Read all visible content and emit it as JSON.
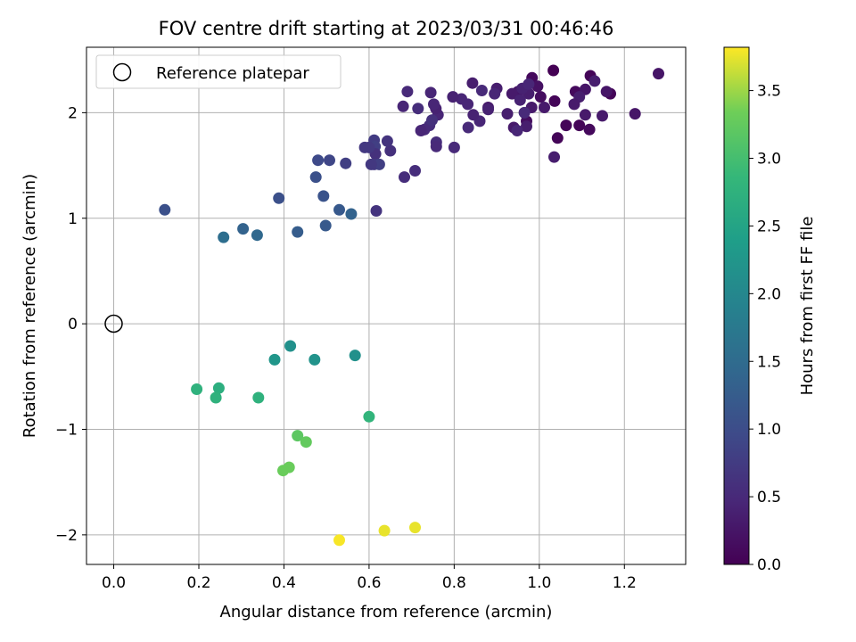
{
  "chart_data": {
    "type": "scatter",
    "title": "FOV centre drift starting at 2023/03/31 00:46:46",
    "xlabel": "Angular distance from reference (arcmin)",
    "ylabel": "Rotation from reference (arcmin)",
    "xlim": [
      -0.064,
      1.344
    ],
    "ylim": [
      -2.28,
      2.62
    ],
    "xticks": [
      0.0,
      0.2,
      0.4,
      0.6,
      0.8,
      1.0,
      1.2
    ],
    "xtick_labels": [
      "0.0",
      "0.2",
      "0.4",
      "0.6",
      "0.8",
      "1.0",
      "1.2"
    ],
    "yticks": [
      -2,
      -1,
      0,
      1,
      2
    ],
    "ytick_labels": [
      "−2",
      "−1",
      "0",
      "1",
      "2"
    ],
    "grid": true,
    "legend": {
      "location": "upper-left",
      "entries": [
        "Reference platepar"
      ]
    },
    "reference_point": {
      "x": 0.0,
      "y": 0.0
    },
    "colorbar": {
      "label": "Hours from first FF file",
      "colormap": "viridis",
      "range": [
        0.0,
        3.82
      ],
      "ticks": [
        0.0,
        0.5,
        1.0,
        1.5,
        2.0,
        2.5,
        3.0,
        3.5
      ],
      "tick_labels": [
        "0.0",
        "0.5",
        "1.0",
        "1.5",
        "2.0",
        "2.5",
        "3.0",
        "3.5"
      ]
    },
    "points": [
      {
        "x": 1.033,
        "y": 2.4,
        "c": 0.0
      },
      {
        "x": 1.12,
        "y": 2.35,
        "c": 0.05
      },
      {
        "x": 1.167,
        "y": 2.18,
        "c": 0.05
      },
      {
        "x": 0.983,
        "y": 2.33,
        "c": 0.1
      },
      {
        "x": 1.085,
        "y": 2.2,
        "c": 0.1
      },
      {
        "x": 1.043,
        "y": 1.76,
        "c": 0.05
      },
      {
        "x": 1.063,
        "y": 1.88,
        "c": 0.05
      },
      {
        "x": 1.094,
        "y": 1.88,
        "c": 0.05
      },
      {
        "x": 1.118,
        "y": 1.84,
        "c": 0.1
      },
      {
        "x": 1.003,
        "y": 2.15,
        "c": 0.15
      },
      {
        "x": 1.036,
        "y": 2.11,
        "c": 0.05
      },
      {
        "x": 0.97,
        "y": 1.92,
        "c": 0.15
      },
      {
        "x": 1.108,
        "y": 2.22,
        "c": 0.25
      },
      {
        "x": 1.158,
        "y": 2.2,
        "c": 0.25
      },
      {
        "x": 1.13,
        "y": 2.3,
        "c": 0.35
      },
      {
        "x": 1.28,
        "y": 2.37,
        "c": 0.25
      },
      {
        "x": 1.225,
        "y": 1.99,
        "c": 0.25
      },
      {
        "x": 1.148,
        "y": 1.97,
        "c": 0.3
      },
      {
        "x": 1.108,
        "y": 1.98,
        "c": 0.3
      },
      {
        "x": 1.094,
        "y": 2.15,
        "c": 0.35
      },
      {
        "x": 1.082,
        "y": 2.08,
        "c": 0.3
      },
      {
        "x": 1.035,
        "y": 1.58,
        "c": 0.35
      },
      {
        "x": 1.012,
        "y": 2.05,
        "c": 0.3
      },
      {
        "x": 0.996,
        "y": 2.25,
        "c": 0.2
      },
      {
        "x": 0.982,
        "y": 2.05,
        "c": 0.3
      },
      {
        "x": 0.975,
        "y": 2.18,
        "c": 0.35
      },
      {
        "x": 0.97,
        "y": 1.87,
        "c": 0.35
      },
      {
        "x": 0.95,
        "y": 2.2,
        "c": 0.25
      },
      {
        "x": 0.94,
        "y": 1.86,
        "c": 0.3
      },
      {
        "x": 0.948,
        "y": 1.83,
        "c": 0.45
      },
      {
        "x": 0.925,
        "y": 1.99,
        "c": 0.35
      },
      {
        "x": 0.936,
        "y": 2.18,
        "c": 0.3
      },
      {
        "x": 0.96,
        "y": 2.23,
        "c": 0.4
      },
      {
        "x": 0.975,
        "y": 2.27,
        "c": 0.45
      },
      {
        "x": 0.955,
        "y": 2.12,
        "c": 0.4
      },
      {
        "x": 0.965,
        "y": 2.0,
        "c": 0.5
      },
      {
        "x": 0.9,
        "y": 2.23,
        "c": 0.35
      },
      {
        "x": 0.895,
        "y": 2.18,
        "c": 0.45
      },
      {
        "x": 0.88,
        "y": 2.05,
        "c": 0.3
      },
      {
        "x": 0.88,
        "y": 2.03,
        "c": 0.4
      },
      {
        "x": 0.865,
        "y": 2.21,
        "c": 0.5
      },
      {
        "x": 0.86,
        "y": 1.92,
        "c": 0.45
      },
      {
        "x": 0.845,
        "y": 1.98,
        "c": 0.4
      },
      {
        "x": 0.843,
        "y": 2.28,
        "c": 0.35
      },
      {
        "x": 0.832,
        "y": 2.08,
        "c": 0.45
      },
      {
        "x": 0.817,
        "y": 2.13,
        "c": 0.45
      },
      {
        "x": 0.833,
        "y": 1.86,
        "c": 0.5
      },
      {
        "x": 0.797,
        "y": 2.15,
        "c": 0.4
      },
      {
        "x": 0.8,
        "y": 1.67,
        "c": 0.5
      },
      {
        "x": 0.762,
        "y": 1.98,
        "c": 0.45
      },
      {
        "x": 0.757,
        "y": 2.04,
        "c": 0.4
      },
      {
        "x": 0.752,
        "y": 2.08,
        "c": 0.45
      },
      {
        "x": 0.745,
        "y": 2.19,
        "c": 0.45
      },
      {
        "x": 0.742,
        "y": 1.88,
        "c": 0.55
      },
      {
        "x": 0.748,
        "y": 1.93,
        "c": 0.6
      },
      {
        "x": 0.73,
        "y": 1.84,
        "c": 0.5
      },
      {
        "x": 0.722,
        "y": 1.83,
        "c": 0.45
      },
      {
        "x": 0.758,
        "y": 1.72,
        "c": 0.55
      },
      {
        "x": 0.758,
        "y": 1.68,
        "c": 0.5
      },
      {
        "x": 0.715,
        "y": 2.04,
        "c": 0.55
      },
      {
        "x": 0.69,
        "y": 2.2,
        "c": 0.5
      },
      {
        "x": 0.68,
        "y": 2.06,
        "c": 0.45
      },
      {
        "x": 0.708,
        "y": 1.45,
        "c": 0.55
      },
      {
        "x": 0.683,
        "y": 1.39,
        "c": 0.55
      },
      {
        "x": 0.65,
        "y": 1.64,
        "c": 0.6
      },
      {
        "x": 0.643,
        "y": 1.73,
        "c": 0.65
      },
      {
        "x": 0.612,
        "y": 1.74,
        "c": 0.75
      },
      {
        "x": 0.614,
        "y": 1.68,
        "c": 0.8
      },
      {
        "x": 0.615,
        "y": 1.61,
        "c": 0.6
      },
      {
        "x": 0.612,
        "y": 1.51,
        "c": 0.7
      },
      {
        "x": 0.624,
        "y": 1.51,
        "c": 0.8
      },
      {
        "x": 0.6,
        "y": 1.67,
        "c": 0.7
      },
      {
        "x": 0.59,
        "y": 1.67,
        "c": 0.7
      },
      {
        "x": 0.605,
        "y": 1.51,
        "c": 0.7
      },
      {
        "x": 0.617,
        "y": 1.07,
        "c": 0.65
      },
      {
        "x": 0.545,
        "y": 1.52,
        "c": 0.8
      },
      {
        "x": 0.507,
        "y": 1.55,
        "c": 0.9
      },
      {
        "x": 0.48,
        "y": 1.55,
        "c": 0.95
      },
      {
        "x": 0.475,
        "y": 1.39,
        "c": 1.05
      },
      {
        "x": 0.493,
        "y": 1.21,
        "c": 1.1
      },
      {
        "x": 0.388,
        "y": 1.19,
        "c": 1.05
      },
      {
        "x": 0.12,
        "y": 1.08,
        "c": 1.05
      },
      {
        "x": 0.53,
        "y": 1.08,
        "c": 1.2
      },
      {
        "x": 0.558,
        "y": 1.04,
        "c": 1.35
      },
      {
        "x": 0.498,
        "y": 0.93,
        "c": 1.2
      },
      {
        "x": 0.432,
        "y": 0.87,
        "c": 1.25
      },
      {
        "x": 0.304,
        "y": 0.9,
        "c": 1.35
      },
      {
        "x": 0.337,
        "y": 0.84,
        "c": 1.45
      },
      {
        "x": 0.258,
        "y": 0.82,
        "c": 1.55
      },
      {
        "x": 0.415,
        "y": -0.21,
        "c": 2.15
      },
      {
        "x": 0.567,
        "y": -0.3,
        "c": 2.15
      },
      {
        "x": 0.472,
        "y": -0.34,
        "c": 2.2
      },
      {
        "x": 0.378,
        "y": -0.34,
        "c": 2.25
      },
      {
        "x": 0.195,
        "y": -0.62,
        "c": 2.75
      },
      {
        "x": 0.247,
        "y": -0.61,
        "c": 2.7
      },
      {
        "x": 0.24,
        "y": -0.7,
        "c": 2.75
      },
      {
        "x": 0.34,
        "y": -0.7,
        "c": 2.75
      },
      {
        "x": 0.6,
        "y": -0.88,
        "c": 2.8
      },
      {
        "x": 0.432,
        "y": -1.06,
        "c": 3.2
      },
      {
        "x": 0.452,
        "y": -1.12,
        "c": 3.25
      },
      {
        "x": 0.412,
        "y": -1.36,
        "c": 3.3
      },
      {
        "x": 0.398,
        "y": -1.39,
        "c": 3.3
      },
      {
        "x": 0.708,
        "y": -1.93,
        "c": 3.75
      },
      {
        "x": 0.636,
        "y": -1.96,
        "c": 3.75
      },
      {
        "x": 0.53,
        "y": -2.05,
        "c": 3.8
      }
    ]
  }
}
